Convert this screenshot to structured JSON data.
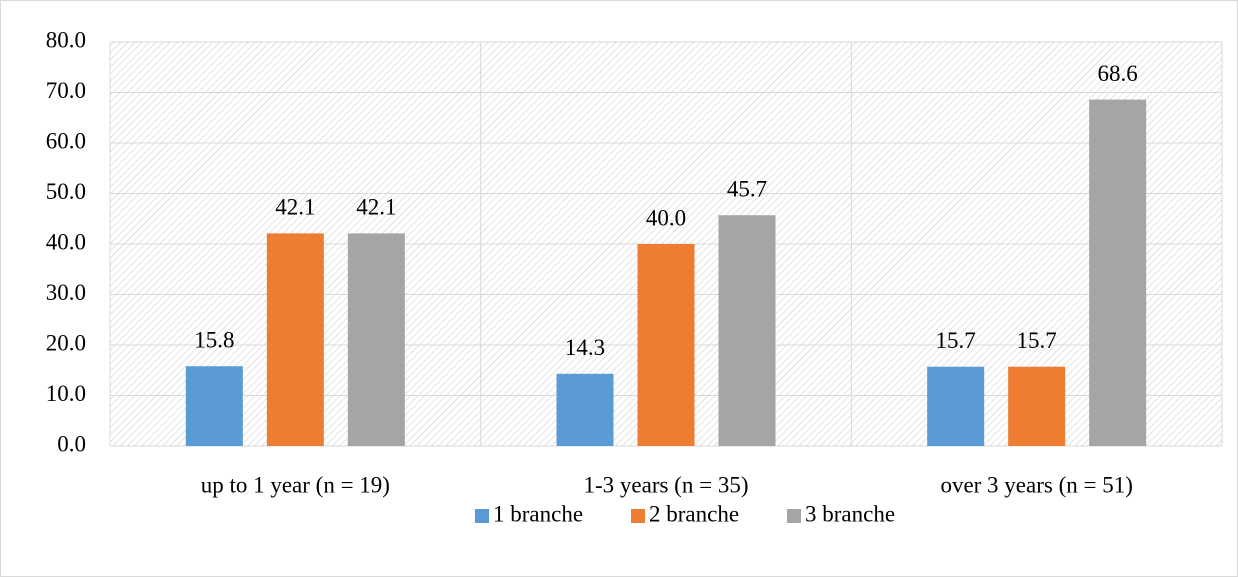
{
  "chart_data": {
    "type": "bar",
    "categories": [
      "up to 1 year (n = 19)",
      "1-3 years (n = 35)",
      "over 3 years (n = 51)"
    ],
    "series": [
      {
        "name": "1 branche",
        "color": "#5b9bd5",
        "values": [
          15.8,
          14.3,
          15.7
        ],
        "value_labels": [
          "15.8",
          "14.3",
          "15.7"
        ]
      },
      {
        "name": "2 branche",
        "color": "#ed7d31",
        "values": [
          42.1,
          40,
          15.7
        ],
        "value_labels": [
          "42.1",
          "40.0",
          "15.7"
        ]
      },
      {
        "name": "3 branche",
        "color": "#a5a5a5",
        "values": [
          42.1,
          45.7,
          68.6
        ],
        "value_labels": [
          "42.1",
          "45.7",
          "68.6"
        ]
      }
    ],
    "ylim": [
      0,
      80
    ],
    "yticks": [
      {
        "value": 0,
        "label": "0.0"
      },
      {
        "value": 10,
        "label": "10.0"
      },
      {
        "value": 20,
        "label": "20.0"
      },
      {
        "value": 30,
        "label": "30.0"
      },
      {
        "value": 40,
        "label": "40.0"
      },
      {
        "value": 50,
        "label": "50.0"
      },
      {
        "value": 60,
        "label": "60.0"
      },
      {
        "value": 70,
        "label": "70.0"
      },
      {
        "value": 80,
        "label": "80.0"
      }
    ],
    "grid": true,
    "legend": "bottom"
  }
}
